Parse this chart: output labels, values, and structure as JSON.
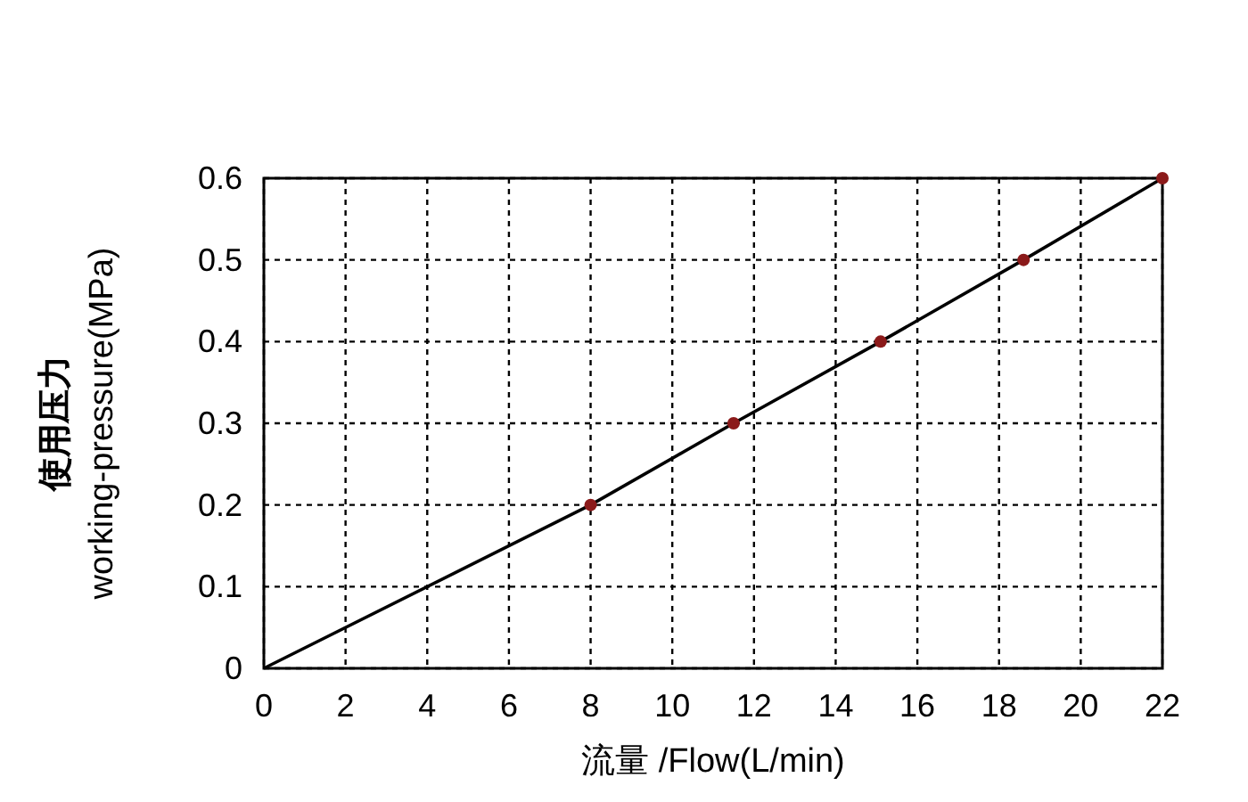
{
  "chart_data": {
    "type": "line",
    "xlabel": "流量 /Flow(L/min)",
    "ylabel": "使用压力\nworking-pressure(MPa)",
    "series": [
      {
        "color": "#000000",
        "marker": "none",
        "x": [
          0,
          8,
          11.5,
          15.1,
          18.6,
          22
        ],
        "values": [
          0,
          0.2,
          0.3,
          0.4,
          0.5,
          0.6
        ]
      },
      {
        "type": "scatter",
        "color": "#8b1a1a",
        "marker": "circle",
        "x": [
          8,
          11.5,
          15.1,
          18.6,
          22
        ],
        "values": [
          0.2,
          0.3,
          0.4,
          0.5,
          0.6
        ]
      }
    ],
    "xlim": [
      0,
      22
    ],
    "ylim": [
      0,
      0.6
    ],
    "xticks": [
      0,
      2,
      4,
      6,
      8,
      10,
      12,
      14,
      16,
      18,
      20,
      22
    ],
    "yticks": [
      0,
      0.1,
      0.2,
      0.3,
      0.4,
      0.5,
      0.6
    ],
    "grid": true
  }
}
